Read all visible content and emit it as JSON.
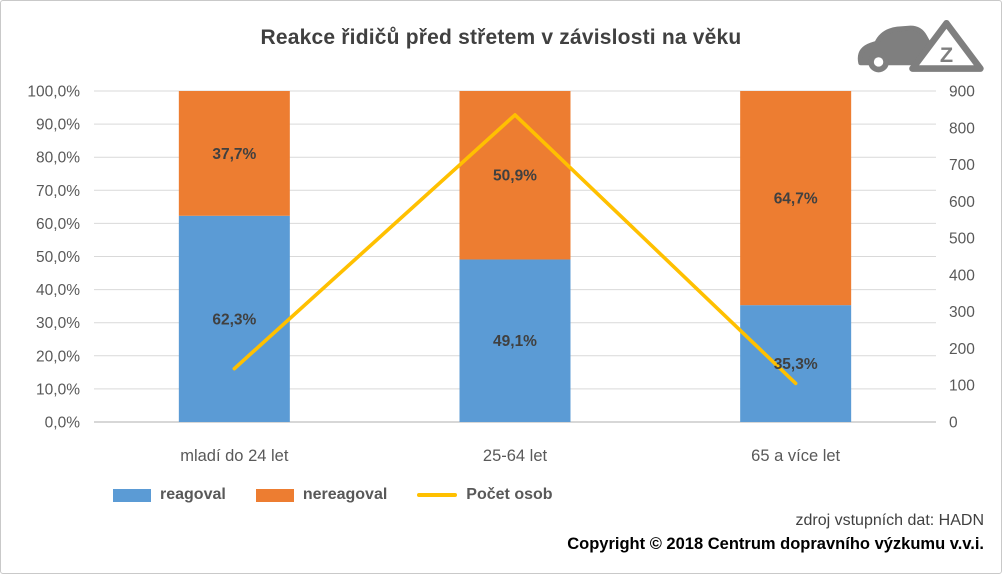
{
  "chart_data": {
    "type": "bar",
    "subtype": "stacked-100pct-columns-with-line",
    "title": "Reakce řidičů před střetem v závislosti na věku",
    "categories": [
      "mladí do 24 let",
      "25-64 let",
      "65 a více let"
    ],
    "series": [
      {
        "name": "reagoval",
        "color": "#5B9BD5",
        "values_pct": [
          62.3,
          49.1,
          35.3
        ],
        "labels": [
          "62,3%",
          "49,1%",
          "35,3%"
        ]
      },
      {
        "name": "nereagoval",
        "color": "#ED7D31",
        "values_pct": [
          37.7,
          50.9,
          64.7
        ],
        "labels": [
          "37,7%",
          "50,9%",
          "64,7%"
        ]
      }
    ],
    "line_series": {
      "name": "Počet osob",
      "color": "#FFC000",
      "axis": "right",
      "values": [
        145,
        835,
        105
      ]
    },
    "left_axis": {
      "min": 0,
      "max": 100,
      "tick_labels": [
        "0,0%",
        "10,0%",
        "20,0%",
        "30,0%",
        "40,0%",
        "50,0%",
        "60,0%",
        "70,0%",
        "80,0%",
        "90,0%",
        "100,0%"
      ]
    },
    "right_axis": {
      "min": 0,
      "max": 900,
      "tick_labels": [
        "0",
        "100",
        "200",
        "300",
        "400",
        "500",
        "600",
        "700",
        "800",
        "900"
      ]
    },
    "grid": true,
    "legend_position": "bottom-left"
  },
  "legend": [
    {
      "label": "reagoval",
      "swatch": "rect",
      "color": "#5B9BD5"
    },
    {
      "label": "nereagoval",
      "swatch": "rect",
      "color": "#ED7D31"
    },
    {
      "label": "Počet osob",
      "swatch": "line",
      "color": "#FFC000"
    }
  ],
  "logo": {
    "name": "car-with-warning-triangle",
    "letter": "Z",
    "color": "#7f7f7f"
  },
  "footer": {
    "source": "zdroj vstupních dat: HADN",
    "copyright": "Copyright © 2018 Centrum dopravního výzkumu v.v.i."
  },
  "colors": {
    "blue": "#5B9BD5",
    "orange": "#ED7D31",
    "yellow": "#FFC000",
    "grid": "#D9D9D9",
    "axis_line": "#BFBFBF",
    "axis_text": "#595959",
    "data_label_text": "#404040"
  }
}
